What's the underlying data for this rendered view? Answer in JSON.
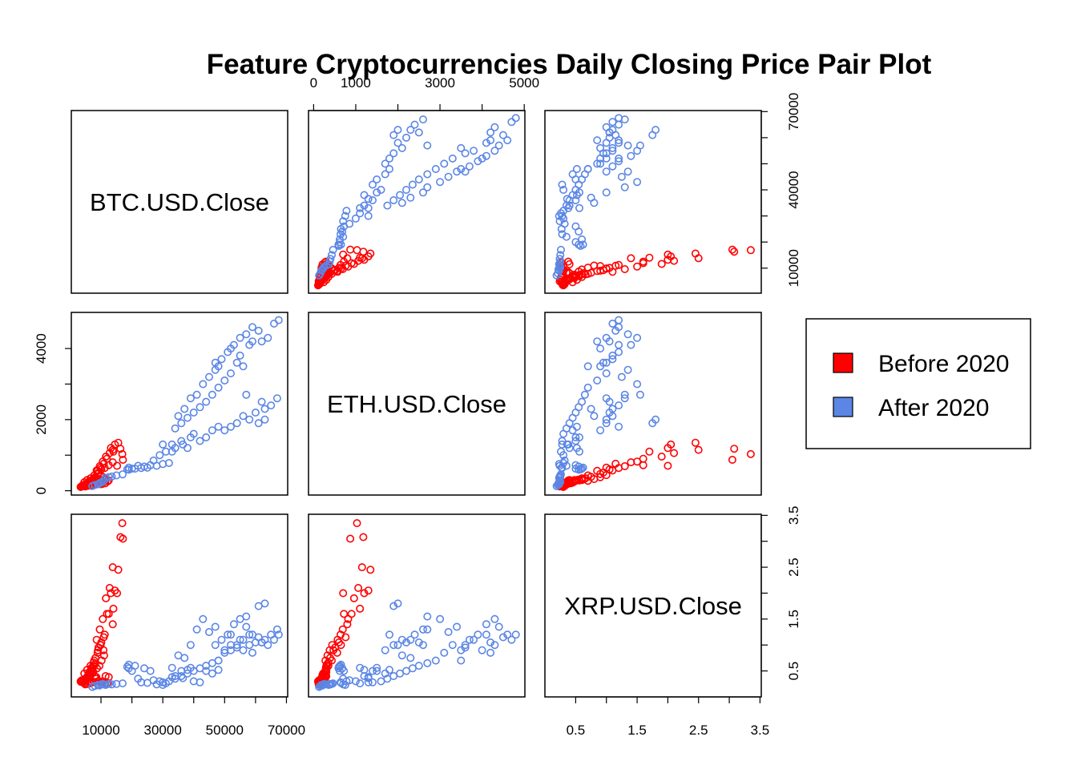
{
  "chart_data": {
    "type": "scatter",
    "title": "Feature Cryptocurrencies Daily Closing Price Pair Plot",
    "variables": [
      "BTC.USD.Close",
      "ETH.USD.Close",
      "XRP.USD.Close"
    ],
    "ranges": {
      "BTC.USD.Close": [
        3200,
        67600
      ],
      "ETH.USD.Close": [
        84,
        4810
      ],
      "XRP.USD.Close": [
        0.14,
        3.38
      ]
    },
    "ticks": {
      "BTC.USD.Close": [
        "10000",
        "30000",
        "50000",
        "70000"
      ],
      "ETH.USD.Close": [
        "0",
        "1000",
        "3000",
        "5000"
      ],
      "ETH.USD.Close.left": [
        "0",
        "2000",
        "4000"
      ],
      "XRP.USD.Close": [
        "0.5",
        "1.5",
        "2.5",
        "3.5"
      ],
      "BTC.USD.Close.right": [
        "10000",
        "40000",
        "70000"
      ]
    },
    "tick_values": {
      "BTC.USD.Close": [
        10000,
        20000,
        30000,
        40000,
        50000,
        60000,
        70000
      ],
      "ETH.USD.Close": [
        0,
        1000,
        2000,
        3000,
        4000,
        5000
      ],
      "XRP.USD.Close": [
        0.5,
        1.0,
        1.5,
        2.0,
        2.5,
        3.0,
        3.5
      ]
    },
    "series": [
      {
        "name": "Before 2020",
        "color": "#ff0000",
        "points": [
          [
            3800,
            130,
            0.32
          ],
          [
            4000,
            145,
            0.3
          ],
          [
            4300,
            160,
            0.31
          ],
          [
            5000,
            170,
            0.33
          ],
          [
            5300,
            175,
            0.35
          ],
          [
            6500,
            225,
            0.45
          ],
          [
            7000,
            290,
            0.51
          ],
          [
            7500,
            300,
            0.48
          ],
          [
            8000,
            270,
            0.4
          ],
          [
            8500,
            240,
            0.38
          ],
          [
            9000,
            210,
            0.3
          ],
          [
            9800,
            185,
            0.28
          ],
          [
            10500,
            230,
            0.3
          ],
          [
            11500,
            300,
            0.4
          ],
          [
            12500,
            290,
            0.38
          ],
          [
            3500,
            110,
            0.29
          ],
          [
            4100,
            150,
            0.28
          ],
          [
            4700,
            140,
            0.27
          ],
          [
            5200,
            165,
            0.32
          ],
          [
            6100,
            210,
            0.42
          ],
          [
            6800,
            280,
            0.5
          ],
          [
            7300,
            310,
            0.55
          ],
          [
            7700,
            300,
            0.6
          ],
          [
            8100,
            320,
            0.63
          ],
          [
            8700,
            300,
            0.55
          ],
          [
            9500,
            310,
            0.6
          ],
          [
            10200,
            280,
            0.7
          ],
          [
            11000,
            330,
            0.8
          ],
          [
            10800,
            380,
            0.9
          ],
          [
            9800,
            440,
            1.0
          ],
          [
            9200,
            510,
            0.95
          ],
          [
            8600,
            570,
            1.1
          ],
          [
            9600,
            690,
            1.3
          ],
          [
            10600,
            820,
            1.5
          ],
          [
            11600,
            960,
            1.9
          ],
          [
            12800,
            1060,
            2.1
          ],
          [
            13800,
            1150,
            2.5
          ],
          [
            14500,
            1300,
            2.05
          ],
          [
            15600,
            1350,
            2.45
          ],
          [
            16300,
            1180,
            3.08
          ],
          [
            16900,
            1030,
            3.35
          ],
          [
            17100,
            870,
            3.05
          ],
          [
            15200,
            700,
            2.0
          ],
          [
            13800,
            800,
            1.4
          ],
          [
            12500,
            720,
            1.6
          ],
          [
            11200,
            640,
            1.2
          ],
          [
            10100,
            600,
            1.05
          ],
          [
            9000,
            470,
            0.9
          ],
          [
            8200,
            390,
            0.75
          ],
          [
            7600,
            350,
            0.66
          ],
          [
            6900,
            290,
            0.56
          ],
          [
            6200,
            260,
            0.48
          ],
          [
            5700,
            220,
            0.4
          ],
          [
            5100,
            190,
            0.36
          ],
          [
            4500,
            160,
            0.33
          ],
          [
            4000,
            135,
            0.31
          ],
          [
            3700,
            120,
            0.29
          ],
          [
            3400,
            105,
            0.3
          ],
          [
            6000,
            200,
            0.38
          ],
          [
            7200,
            250,
            0.45
          ],
          [
            8300,
            220,
            0.35
          ],
          [
            9300,
            200,
            0.3
          ],
          [
            10300,
            190,
            0.27
          ],
          [
            11400,
            210,
            0.25
          ],
          [
            12100,
            260,
            0.27
          ],
          [
            7900,
            180,
            0.29
          ],
          [
            7100,
            160,
            0.28
          ],
          [
            6400,
            145,
            0.26
          ],
          [
            5600,
            135,
            0.25
          ],
          [
            4900,
            120,
            0.24
          ],
          [
            13200,
            1200,
            2.0
          ],
          [
            14000,
            1100,
            1.7
          ],
          [
            11900,
            900,
            1.6
          ],
          [
            10900,
            760,
            1.15
          ],
          [
            9900,
            650,
            1.0
          ],
          [
            8900,
            560,
            0.85
          ],
          [
            7800,
            430,
            0.7
          ],
          [
            6600,
            350,
            0.6
          ],
          [
            5500,
            300,
            0.52
          ],
          [
            4600,
            240,
            0.45
          ]
        ]
      },
      {
        "name": "After 2020",
        "color": "#5b86e5",
        "points": [
          [
            7200,
            130,
            0.19
          ],
          [
            8000,
            160,
            0.21
          ],
          [
            9000,
            180,
            0.23
          ],
          [
            9500,
            210,
            0.22
          ],
          [
            10000,
            230,
            0.24
          ],
          [
            10500,
            250,
            0.25
          ],
          [
            11000,
            300,
            0.24
          ],
          [
            11500,
            360,
            0.23
          ],
          [
            12500,
            380,
            0.25
          ],
          [
            13500,
            400,
            0.24
          ],
          [
            15000,
            430,
            0.25
          ],
          [
            17000,
            460,
            0.26
          ],
          [
            18500,
            600,
            0.58
          ],
          [
            19000,
            590,
            0.55
          ],
          [
            21000,
            620,
            0.6
          ],
          [
            23000,
            640,
            0.28
          ],
          [
            25000,
            650,
            0.27
          ],
          [
            28000,
            700,
            0.24
          ],
          [
            30000,
            750,
            0.23
          ],
          [
            32000,
            780,
            0.3
          ],
          [
            34000,
            1200,
            0.4
          ],
          [
            36000,
            1400,
            0.5
          ],
          [
            33000,
            1100,
            0.56
          ],
          [
            36500,
            1300,
            0.36
          ],
          [
            38000,
            1200,
            0.52
          ],
          [
            39000,
            1500,
            0.56
          ],
          [
            40000,
            1600,
            0.3
          ],
          [
            42000,
            1400,
            0.28
          ],
          [
            44000,
            1500,
            0.5
          ],
          [
            46000,
            1700,
            0.45
          ],
          [
            48000,
            1800,
            0.52
          ],
          [
            50000,
            1700,
            0.9
          ],
          [
            52000,
            1800,
            1.2
          ],
          [
            54000,
            1900,
            1.0
          ],
          [
            56000,
            2100,
            1.1
          ],
          [
            58000,
            2000,
            1.0
          ],
          [
            60000,
            2200,
            1.05
          ],
          [
            62000,
            2500,
            1.05
          ],
          [
            63000,
            2300,
            1.1
          ],
          [
            65000,
            2400,
            1.2
          ],
          [
            67000,
            2600,
            1.3
          ],
          [
            35000,
            2100,
            0.8
          ],
          [
            37000,
            2300,
            0.75
          ],
          [
            39000,
            2600,
            1.0
          ],
          [
            41000,
            2700,
            1.3
          ],
          [
            43000,
            3000,
            1.5
          ],
          [
            45000,
            3200,
            1.25
          ],
          [
            47000,
            3400,
            1.35
          ],
          [
            49000,
            3700,
            1.1
          ],
          [
            51000,
            3900,
            1.2
          ],
          [
            53000,
            4100,
            1.4
          ],
          [
            55000,
            4300,
            1.5
          ],
          [
            57000,
            4400,
            1.35
          ],
          [
            59000,
            4600,
            1.2
          ],
          [
            61000,
            4500,
            1.15
          ],
          [
            62000,
            4200,
            1.05
          ],
          [
            64000,
            4300,
            1.0
          ],
          [
            66000,
            4700,
            1.1
          ],
          [
            67500,
            4800,
            1.2
          ],
          [
            58000,
            4100,
            1.2
          ],
          [
            56000,
            3500,
            0.9
          ],
          [
            54000,
            3600,
            0.95
          ],
          [
            52000,
            3300,
            1.0
          ],
          [
            50000,
            3100,
            0.85
          ],
          [
            48000,
            2900,
            0.7
          ],
          [
            46000,
            2700,
            0.65
          ],
          [
            44000,
            2500,
            0.6
          ],
          [
            42000,
            2350,
            0.55
          ],
          [
            40000,
            2200,
            0.5
          ],
          [
            38000,
            2050,
            0.45
          ],
          [
            36000,
            1900,
            0.4
          ],
          [
            34000,
            1750,
            0.35
          ],
          [
            57000,
            2700,
            1.55
          ],
          [
            61000,
            1900,
            1.75
          ],
          [
            63000,
            2000,
            1.8
          ],
          [
            47000,
            3600,
            1.0
          ],
          [
            48000,
            3500,
            0.7
          ],
          [
            52000,
            4000,
            0.9
          ],
          [
            55000,
            3800,
            1.1
          ],
          [
            59000,
            4200,
            0.85
          ],
          [
            30000,
            1300,
            0.28
          ],
          [
            31000,
            1100,
            0.26
          ],
          [
            29000,
            1000,
            0.3
          ],
          [
            27000,
            850,
            0.32
          ],
          [
            22000,
            700,
            0.35
          ],
          [
            20000,
            620,
            0.5
          ],
          [
            19000,
            650,
            0.62
          ],
          [
            24000,
            680,
            0.55
          ],
          [
            26000,
            720,
            0.5
          ],
          [
            33000,
            1300,
            0.38
          ]
        ]
      }
    ],
    "legend": {
      "placement": "right",
      "entries": [
        "Before 2020",
        "After 2020"
      ]
    }
  }
}
